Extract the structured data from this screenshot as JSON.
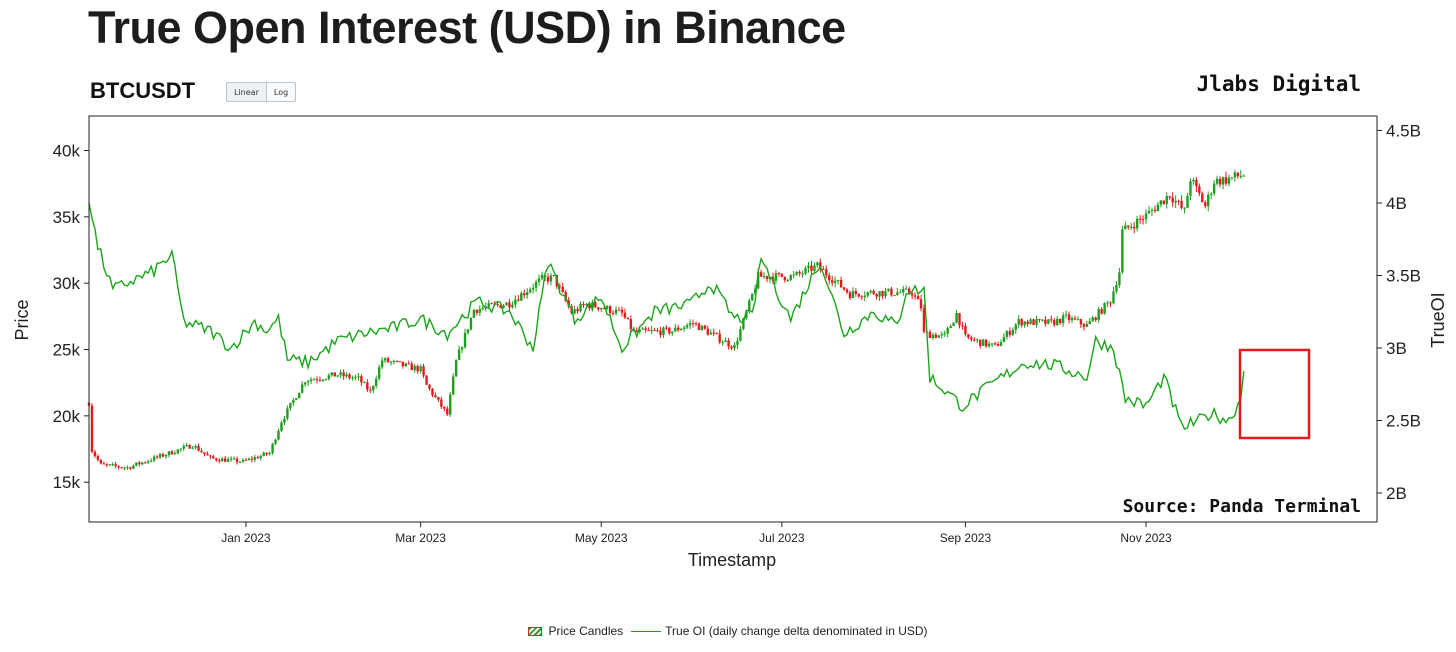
{
  "header": {
    "title": "True Open Interest (USD) in Binance",
    "symbol": "BTCUSDT",
    "scale_buttons": [
      "Linear",
      "Log"
    ],
    "brand": "Jlabs Digital",
    "source": "Source: Panda Terminal"
  },
  "colors": {
    "up": "#1e9e1e",
    "down": "#e31a1c",
    "oi_line": "#19a519",
    "highlight_box": "#e31a1c"
  },
  "legend": {
    "candles": "Price Candles",
    "oi": "True OI (daily change delta denominated in USD)"
  },
  "chart_data": {
    "type": "line",
    "x_label": "Timestamp",
    "y_label_left": "Price",
    "y_label_right": "TrueOI",
    "x_range": [
      "2022-11-09",
      "2024-01-18"
    ],
    "x_ticks": [
      {
        "date": "2023-01-01",
        "label": "Jan 2023"
      },
      {
        "date": "2023-03-01",
        "label": "Mar 2023"
      },
      {
        "date": "2023-05-01",
        "label": "May 2023"
      },
      {
        "date": "2023-07-01",
        "label": "Jul 2023"
      },
      {
        "date": "2023-09-01",
        "label": "Sep 2023"
      },
      {
        "date": "2023-11-01",
        "label": "Nov 2023"
      }
    ],
    "y_left": {
      "range": [
        12000,
        42600
      ],
      "ticks": [
        15000,
        20000,
        25000,
        30000,
        35000,
        40000
      ],
      "tick_labels": [
        "15k",
        "20k",
        "25k",
        "30k",
        "35k",
        "40k"
      ]
    },
    "y_right": {
      "range": [
        1.8,
        4.6
      ],
      "ticks": [
        2.0,
        2.5,
        3.0,
        3.5,
        4.0,
        4.5
      ],
      "tick_labels": [
        "2B",
        "2.5B",
        "3B",
        "3.5B",
        "4B",
        "4.5B"
      ],
      "unit": "billion USD"
    },
    "price_series": {
      "name": "Price Candles",
      "close_anchors": [
        [
          "2022-11-09",
          21000
        ],
        [
          "2022-11-10",
          17400
        ],
        [
          "2022-11-13",
          16300
        ],
        [
          "2022-11-22",
          16100
        ],
        [
          "2022-12-01",
          16800
        ],
        [
          "2022-12-14",
          17800
        ],
        [
          "2022-12-20",
          16800
        ],
        [
          "2022-12-31",
          16550
        ],
        [
          "2023-01-09",
          17200
        ],
        [
          "2023-01-13",
          19600
        ],
        [
          "2023-01-21",
          22700
        ],
        [
          "2023-02-01",
          23100
        ],
        [
          "2023-02-08",
          22800
        ],
        [
          "2023-02-12",
          21800
        ],
        [
          "2023-02-16",
          24200
        ],
        [
          "2023-02-23",
          23800
        ],
        [
          "2023-03-01",
          23500
        ],
        [
          "2023-03-03",
          22300
        ],
        [
          "2023-03-10",
          20100
        ],
        [
          "2023-03-13",
          24100
        ],
        [
          "2023-03-19",
          28000
        ],
        [
          "2023-03-31",
          28500
        ],
        [
          "2023-04-11",
          30300
        ],
        [
          "2023-04-15",
          30400
        ],
        [
          "2023-04-21",
          27800
        ],
        [
          "2023-04-26",
          28400
        ],
        [
          "2023-05-01",
          28200
        ],
        [
          "2023-05-08",
          27700
        ],
        [
          "2023-05-12",
          26300
        ],
        [
          "2023-05-25",
          26400
        ],
        [
          "2023-06-01",
          27000
        ],
        [
          "2023-06-10",
          25800
        ],
        [
          "2023-06-15",
          25200
        ],
        [
          "2023-06-20",
          28400
        ],
        [
          "2023-06-23",
          30500
        ],
        [
          "2023-07-05",
          30500
        ],
        [
          "2023-07-13",
          31300
        ],
        [
          "2023-07-24",
          29200
        ],
        [
          "2023-08-01",
          29300
        ],
        [
          "2023-08-14",
          29300
        ],
        [
          "2023-08-17",
          28200
        ],
        [
          "2023-08-18",
          26200
        ],
        [
          "2023-08-25",
          26000
        ],
        [
          "2023-08-29",
          27700
        ],
        [
          "2023-09-01",
          25900
        ],
        [
          "2023-09-11",
          25200
        ],
        [
          "2023-09-19",
          27100
        ],
        [
          "2023-09-30",
          27000
        ],
        [
          "2023-10-05",
          27400
        ],
        [
          "2023-10-12",
          26800
        ],
        [
          "2023-10-20",
          28700
        ],
        [
          "2023-10-23",
          30900
        ],
        [
          "2023-10-24",
          33900
        ],
        [
          "2023-11-01",
          35100
        ],
        [
          "2023-11-09",
          36700
        ],
        [
          "2023-11-14",
          35400
        ],
        [
          "2023-11-16",
          37900
        ],
        [
          "2023-11-21",
          35800
        ],
        [
          "2023-11-24",
          37700
        ],
        [
          "2023-11-28",
          37800
        ],
        [
          "2023-12-04",
          38200
        ]
      ]
    },
    "oi_series": {
      "name": "True OI (daily change delta denominated in USD)",
      "anchors": [
        [
          "2022-11-09",
          4.0
        ],
        [
          "2022-11-12",
          3.7
        ],
        [
          "2022-11-17",
          3.4
        ],
        [
          "2022-11-22",
          3.45
        ],
        [
          "2022-11-30",
          3.52
        ],
        [
          "2022-12-07",
          3.64
        ],
        [
          "2022-12-11",
          3.18
        ],
        [
          "2022-12-20",
          3.12
        ],
        [
          "2022-12-27",
          3.0
        ],
        [
          "2023-01-04",
          3.18
        ],
        [
          "2023-01-08",
          3.12
        ],
        [
          "2023-01-12",
          3.2
        ],
        [
          "2023-01-15",
          2.92
        ],
        [
          "2023-01-22",
          2.9
        ],
        [
          "2023-02-01",
          3.05
        ],
        [
          "2023-02-10",
          3.1
        ],
        [
          "2023-02-20",
          3.14
        ],
        [
          "2023-03-01",
          3.2
        ],
        [
          "2023-03-10",
          3.1
        ],
        [
          "2023-03-20",
          3.32
        ],
        [
          "2023-03-31",
          3.25
        ],
        [
          "2023-04-08",
          3.0
        ],
        [
          "2023-04-13",
          3.6
        ],
        [
          "2023-04-22",
          3.2
        ],
        [
          "2023-05-01",
          3.35
        ],
        [
          "2023-05-08",
          3.0
        ],
        [
          "2023-05-19",
          3.25
        ],
        [
          "2023-05-31",
          3.3
        ],
        [
          "2023-06-07",
          3.45
        ],
        [
          "2023-06-15",
          3.2
        ],
        [
          "2023-06-21",
          3.22
        ],
        [
          "2023-06-24",
          3.62
        ],
        [
          "2023-07-04",
          3.2
        ],
        [
          "2023-07-14",
          3.6
        ],
        [
          "2023-07-22",
          3.1
        ],
        [
          "2023-08-01",
          3.25
        ],
        [
          "2023-08-09",
          3.15
        ],
        [
          "2023-08-12",
          3.4
        ],
        [
          "2023-08-18",
          3.4
        ],
        [
          "2023-08-20",
          2.8
        ],
        [
          "2023-08-31",
          2.6
        ],
        [
          "2023-09-12",
          2.78
        ],
        [
          "2023-09-21",
          2.9
        ],
        [
          "2023-10-01",
          2.88
        ],
        [
          "2023-10-12",
          2.8
        ],
        [
          "2023-10-15",
          3.05
        ],
        [
          "2023-10-21",
          3.0
        ],
        [
          "2023-10-25",
          2.65
        ],
        [
          "2023-11-01",
          2.6
        ],
        [
          "2023-11-07",
          2.8
        ],
        [
          "2023-11-13",
          2.45
        ],
        [
          "2023-11-19",
          2.5
        ],
        [
          "2023-11-23",
          2.55
        ],
        [
          "2023-11-29",
          2.5
        ],
        [
          "2023-12-03",
          2.65
        ],
        [
          "2023-12-04",
          2.84
        ]
      ]
    }
  }
}
